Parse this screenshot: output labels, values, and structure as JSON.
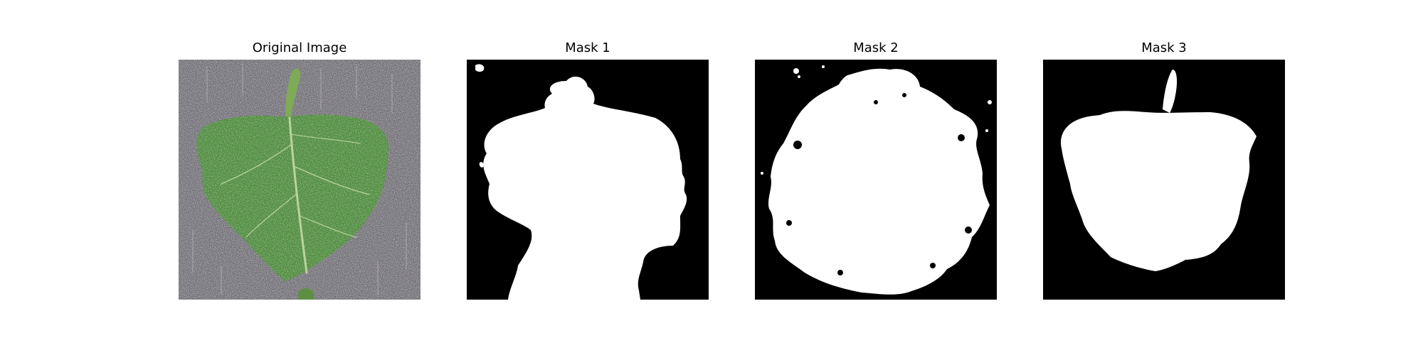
{
  "panels": [
    {
      "title": "Original Image",
      "content": "leaf-photo"
    },
    {
      "title": "Mask 1",
      "content": "binary-mask"
    },
    {
      "title": "Mask 2",
      "content": "binary-mask"
    },
    {
      "title": "Mask 3",
      "content": "binary-mask"
    }
  ],
  "colors": {
    "background": "#ffffff",
    "mask_background": "#000000",
    "mask_foreground": "#ffffff",
    "leaf_green": "#4f8a3e",
    "fabric_gray": "#5e5c63",
    "vein": "#b9d39c"
  }
}
